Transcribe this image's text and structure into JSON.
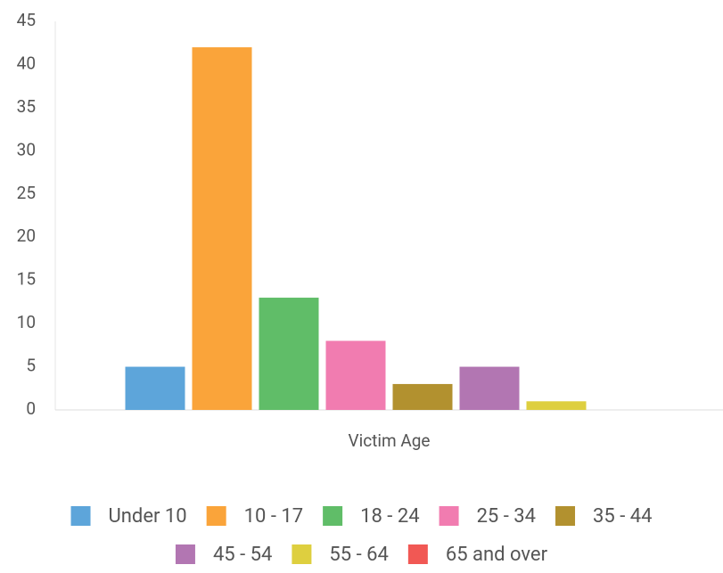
{
  "chart_data": {
    "type": "bar",
    "categories": [
      "Victim Age"
    ],
    "series": [
      {
        "name": "Under 10",
        "color": "#5da5da",
        "values": [
          5
        ]
      },
      {
        "name": "10 - 17",
        "color": "#faa43a",
        "values": [
          42
        ]
      },
      {
        "name": "18 - 24",
        "color": "#60bd68",
        "values": [
          13
        ]
      },
      {
        "name": "25 - 34",
        "color": "#f17cb0",
        "values": [
          8
        ]
      },
      {
        "name": "35 - 44",
        "color": "#b2912f",
        "values": [
          3
        ]
      },
      {
        "name": "45 - 54",
        "color": "#b276b2",
        "values": [
          5
        ]
      },
      {
        "name": "55 - 64",
        "color": "#decf3f",
        "values": [
          1
        ]
      },
      {
        "name": "65 and over",
        "color": "#f15854",
        "values": [
          0
        ]
      }
    ],
    "ylim": [
      0,
      45
    ],
    "yticks": [
      0,
      5,
      10,
      15,
      20,
      25,
      30,
      35,
      40,
      45
    ],
    "grid": false,
    "legend": "bottom"
  }
}
